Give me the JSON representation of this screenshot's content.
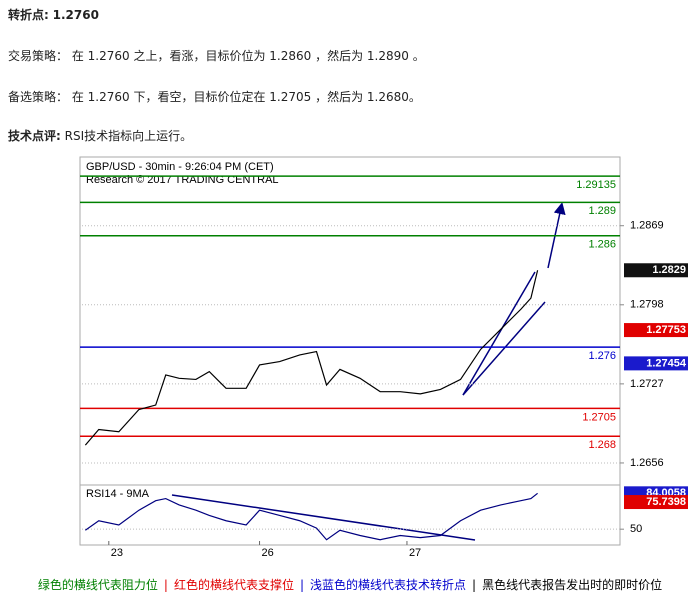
{
  "header": {
    "label": "转折点:",
    "value": "1.2760"
  },
  "strategies": [
    {
      "label": "交易策略：",
      "text": "在 1.2760 之上，看涨，目标价位为 1.2860 ，然后为 1.2890 。"
    },
    {
      "label": "备选策略：",
      "text": "在 1.2760 下，看空，目标价位定在 1.2705 ，然后为 1.2680。"
    }
  ],
  "comment": {
    "label": "技术点评:",
    "text": "RSI技术指标向上运行。"
  },
  "chart_data": [
    {
      "type": "line",
      "title": "GBP/USD - 30min - 9:26:04 PM (CET)",
      "subtitle": "Research © 2017 TRADING CENTRAL",
      "x": [
        1,
        5,
        11,
        17,
        22,
        25,
        29,
        34,
        38,
        43,
        49,
        53,
        59,
        65,
        70,
        73,
        77,
        83,
        89,
        95,
        101,
        107,
        113,
        119,
        125,
        131,
        134,
        136
      ],
      "series": [
        {
          "color": "#000000",
          "values": [
            1.2672,
            1.2686,
            1.2684,
            1.2704,
            1.2708,
            1.2735,
            1.2732,
            1.2731,
            1.2738,
            1.2723,
            1.2723,
            1.2744,
            1.2747,
            1.2753,
            1.2756,
            1.2726,
            1.274,
            1.2732,
            1.272,
            1.272,
            1.2718,
            1.2722,
            1.2731,
            1.2758,
            1.2776,
            1.2794,
            1.2804,
            1.2829
          ]
        }
      ],
      "xlim": [
        0,
        160
      ],
      "ylim": [
        1.2638,
        1.2928
      ],
      "yticks": [
        1.2656,
        1.2727,
        1.2798,
        1.2869
      ],
      "grid": true,
      "levels": [
        {
          "value": 1.29135,
          "color": "#008000"
        },
        {
          "value": 1.289,
          "color": "#008000"
        },
        {
          "value": 1.286,
          "color": "#008000"
        },
        {
          "value": 1.276,
          "color": "#0000cc"
        },
        {
          "value": 1.2705,
          "color": "#e00000"
        },
        {
          "value": 1.268,
          "color": "#e00000"
        }
      ],
      "markers": [
        {
          "value": 1.2829,
          "color": "#111111"
        },
        {
          "value": 1.27753,
          "color": "#e00000"
        },
        {
          "value": 1.27454,
          "color": "#1a1acc"
        }
      ]
    },
    {
      "type": "line",
      "title": "RSI14 - 9MA",
      "x": [
        1,
        5,
        11,
        17,
        22,
        25,
        29,
        34,
        38,
        43,
        49,
        53,
        59,
        65,
        70,
        73,
        77,
        83,
        89,
        95,
        101,
        107,
        113,
        119,
        125,
        131,
        134,
        136
      ],
      "series": [
        {
          "color": "#000080",
          "values": [
            49,
            58,
            54,
            68,
            77,
            79,
            73,
            68,
            63,
            58,
            54,
            68,
            63,
            58,
            51,
            40,
            49,
            44,
            40,
            44,
            42,
            44,
            58,
            68,
            73,
            77,
            79,
            84
          ]
        }
      ],
      "xlim": [
        0,
        160
      ],
      "xticks": [
        {
          "value": 8,
          "label": "23"
        },
        {
          "value": 53,
          "label": "26"
        },
        {
          "value": 97,
          "label": "27"
        }
      ],
      "ylim": [
        35,
        90
      ],
      "yticks": [
        50
      ],
      "grid": true,
      "markers": [
        {
          "value": 84.0058,
          "color": "#1a1acc"
        },
        {
          "value": 75.7398,
          "color": "#e00000"
        }
      ]
    }
  ],
  "footer": {
    "separator": "|",
    "items": [
      {
        "text": "绿色的横线代表阻力位",
        "color": "#008000"
      },
      {
        "text": "红色的横线代表支撑位",
        "color": "#e00000"
      },
      {
        "text": "浅蓝色的横线代表技术转折点",
        "color": "#0000cc"
      },
      {
        "text": "黑色线代表报告发出时的即时价位",
        "color": "#000000"
      }
    ]
  }
}
